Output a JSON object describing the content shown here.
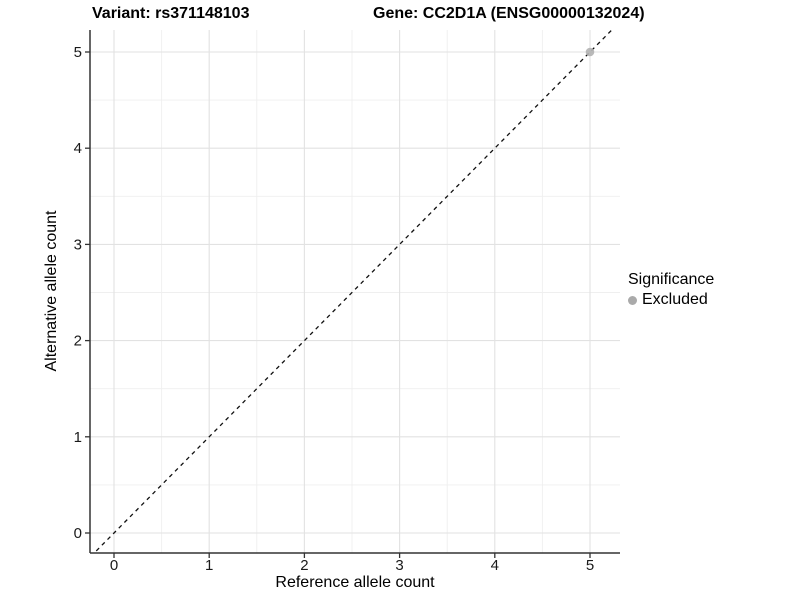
{
  "chart_data": {
    "type": "scatter",
    "title_left": "Variant: rs371148103",
    "title_right": "Gene: CC2D1A (ENSG00000132024)",
    "xlabel": "Reference allele count",
    "ylabel": "Alternative allele count",
    "x_ticks": [
      0,
      1,
      2,
      3,
      4,
      5
    ],
    "y_ticks": [
      0,
      1,
      2,
      3,
      4,
      5
    ],
    "xlim": [
      -0.25,
      5.32
    ],
    "ylim": [
      -0.21,
      5.23
    ],
    "grid": "major and minor gridlines on white panel",
    "identity_line": {
      "style": "dashed",
      "slope": 1,
      "intercept": 0
    },
    "series": [
      {
        "name": "Excluded",
        "color": "#b3b3b3",
        "points": [
          {
            "x": 5,
            "y": 5
          }
        ]
      }
    ],
    "legend": {
      "title": "Significance",
      "position": "right",
      "items": [
        {
          "label": "Excluded",
          "color": "#aaaaaa"
        }
      ]
    }
  },
  "colors": {
    "background": "#ffffff",
    "grid_major": "#e2e2e2",
    "grid_minor": "#efefef",
    "axis_line": "#333333",
    "tick_text": "#1a1a1a",
    "reference_line": "#111111"
  }
}
